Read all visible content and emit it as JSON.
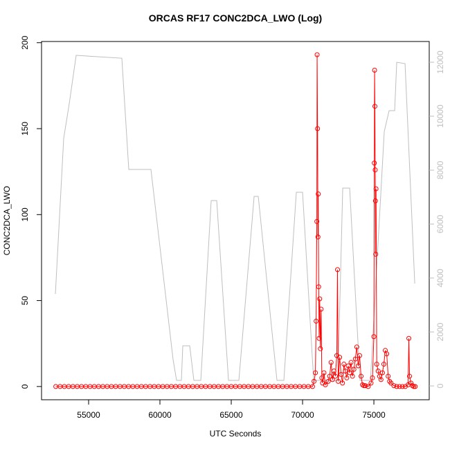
{
  "chart_data": {
    "type": "line",
    "title": "ORCAS RF17 CONC2DCA_LWO (Log)",
    "x_label": "UTC Seconds",
    "y_label": "CONC2DCA_LWO",
    "xlim": [
      51700,
      78880
    ],
    "ylim": [
      -7.7,
      200.7
    ],
    "y2lim": [
      -513,
      12770
    ],
    "xticks": [
      55000,
      60000,
      65000,
      70000,
      75000
    ],
    "yticks": [
      0,
      50,
      100,
      150,
      200
    ],
    "y2ticks": [
      0,
      2000,
      4000,
      6000,
      8000,
      10000,
      12000
    ],
    "series": [
      {
        "color": "#ff0000",
        "x": [
          52700,
          53000,
          53300,
          53600,
          53900,
          54200,
          54500,
          54800,
          55100,
          55400,
          55700,
          56000,
          56300,
          56600,
          56900,
          57200,
          57500,
          57800,
          58100,
          58400,
          58700,
          59000,
          59300,
          59600,
          59900,
          60200,
          60500,
          60800,
          61100,
          61400,
          61700,
          62000,
          62300,
          62600,
          62900,
          63200,
          63500,
          63800,
          64100,
          64400,
          64700,
          65000,
          65300,
          65600,
          65900,
          66200,
          66500,
          66800,
          67100,
          67400,
          67700,
          68000,
          68300,
          68600,
          68900,
          69200,
          69500,
          69800,
          70100,
          70400,
          70700,
          70800,
          70900,
          70950,
          71000,
          71020,
          71050,
          71080,
          71100,
          71130,
          71160,
          71200,
          71250,
          71300,
          71350,
          71400,
          71500,
          71600,
          71800,
          71900,
          72000,
          72100,
          72200,
          72300,
          72400,
          72450,
          72500,
          72600,
          72700,
          72800,
          72900,
          73000,
          73100,
          73200,
          73300,
          73400,
          73500,
          73600,
          73700,
          73800,
          73900,
          74000,
          74100,
          74200,
          74300,
          74400,
          74600,
          74800,
          74900,
          75000,
          75030,
          75050,
          75070,
          75090,
          75110,
          75130,
          75150,
          75200,
          75300,
          75400,
          75500,
          75600,
          75700,
          75800,
          75900,
          76000,
          76100,
          76200,
          76400,
          76600,
          76800,
          77000,
          77200,
          77400,
          77450,
          77500,
          77600,
          77700,
          77800,
          77900
        ],
        "values": [
          0,
          0,
          0,
          0,
          0,
          0,
          0,
          0,
          0,
          0,
          0,
          0,
          0,
          0,
          0,
          0,
          0,
          0,
          0,
          0,
          0,
          0,
          0,
          0,
          0,
          0,
          0,
          0,
          0,
          0,
          0,
          0,
          0,
          0,
          0,
          0,
          0,
          0,
          0,
          0,
          0,
          0,
          0,
          0,
          0,
          0,
          0,
          0,
          0,
          0,
          0,
          0,
          0,
          0,
          0,
          0,
          0,
          0,
          0,
          0,
          0,
          3,
          8,
          38,
          96,
          193,
          150,
          87,
          112,
          58,
          28,
          51,
          22,
          45,
          5,
          2,
          8,
          1,
          3,
          6,
          14,
          4,
          9,
          6,
          18,
          68,
          3,
          17,
          7,
          2,
          13,
          9,
          5,
          12,
          8,
          14,
          6,
          10,
          16,
          23,
          12,
          18,
          6,
          1,
          0.5,
          0.5,
          0,
          2,
          5,
          29,
          130,
          184,
          163,
          126,
          108,
          77,
          115,
          13,
          9,
          6,
          4,
          8,
          13,
          21,
          19,
          6,
          3,
          2,
          0.5,
          0,
          0,
          0,
          0,
          1,
          28,
          6,
          2,
          0.5,
          0,
          0
        ],
        "markers": true
      },
      {
        "color": "#bebebe",
        "axis": "y2",
        "x": [
          52671,
          53253,
          53641,
          54127,
          57330,
          57816,
          59369,
          60923,
          61166,
          61505,
          61602,
          62088,
          62379,
          62865,
          63593,
          63982,
          64807,
          65535,
          66603,
          66894,
          68205,
          68689,
          69563,
          70000,
          70777,
          72476,
          72816,
          73302,
          74028,
          74757,
          75728,
          76068,
          76456,
          76602,
          77185,
          77865
        ],
        "values": [
          3410,
          9180,
          10460,
          12256,
          12150,
          8026,
          8026,
          974,
          205,
          205,
          1487,
          1487,
          205,
          205,
          6872,
          6872,
          205,
          205,
          7026,
          7026,
          205,
          205,
          7180,
          7180,
          205,
          205,
          7333,
          7333,
          205,
          205,
          9436,
          10205,
          10205,
          12000,
          11948,
          3795
        ],
        "markers": false
      }
    ]
  }
}
